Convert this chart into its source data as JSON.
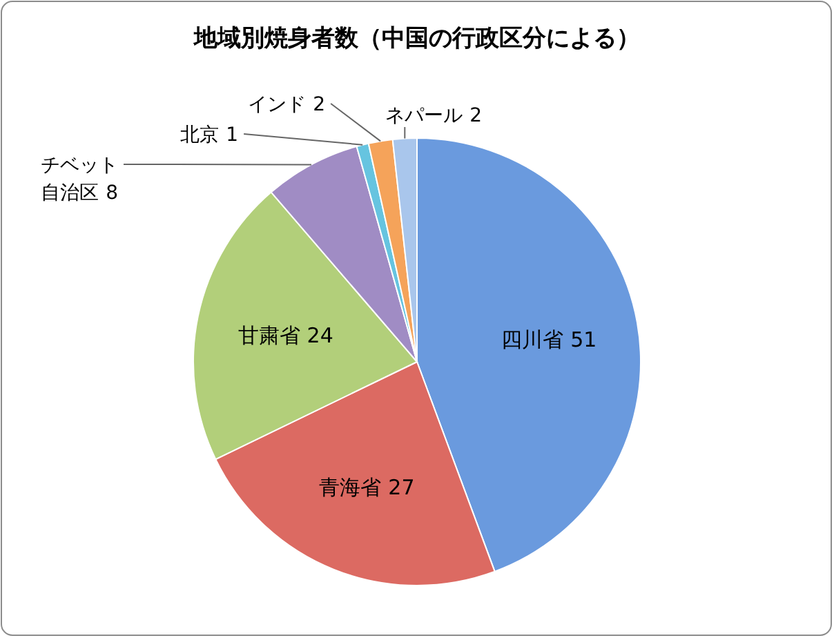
{
  "chart_data": {
    "type": "pie",
    "title": "地域別焼身者数（中国の行政区分による）",
    "categories": [
      "四川省",
      "青海省",
      "甘粛省",
      "チベット自治区",
      "北京",
      "インド",
      "ネパール"
    ],
    "values": [
      51,
      27,
      24,
      8,
      1,
      2,
      2
    ],
    "colors": [
      "#6a9ade",
      "#dc6a62",
      "#b2cf7a",
      "#a08cc4",
      "#66c4e0",
      "#f5a35a",
      "#a9c6ec"
    ],
    "data_labels": true
  }
}
